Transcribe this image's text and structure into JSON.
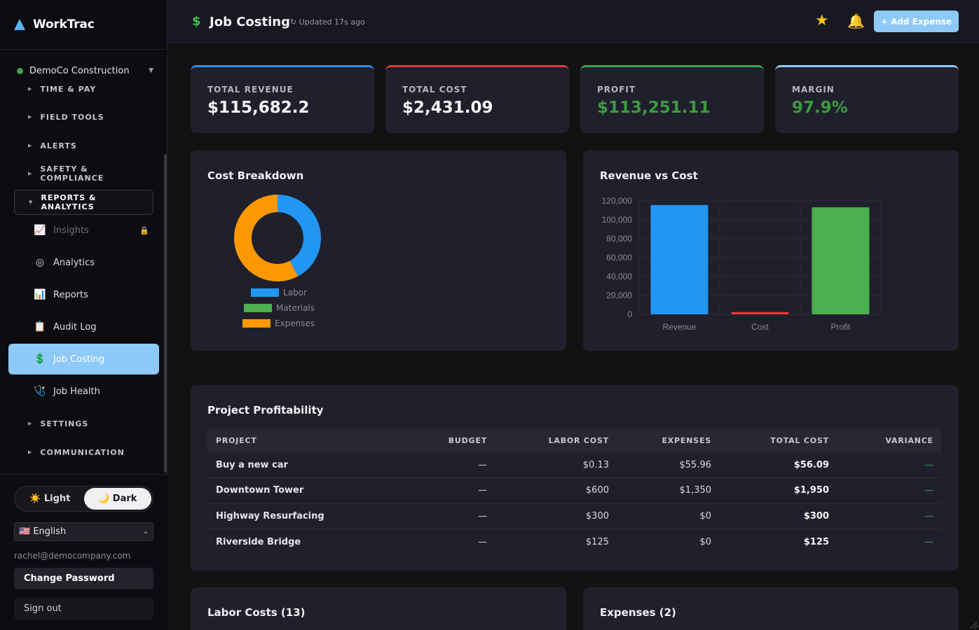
{
  "app": {
    "name": "WorkTrac"
  },
  "sidebar": {
    "org": "DemoCo Construction",
    "sections": [
      {
        "label": "TIME & PAY"
      },
      {
        "label": "FIELD TOOLS"
      },
      {
        "label": "ALERTS"
      },
      {
        "label": "SAFETY & COMPLIANCE"
      },
      {
        "label": "REPORTS & ANALYTICS"
      },
      {
        "label": "SETTINGS"
      },
      {
        "label": "COMMUNICATION"
      }
    ],
    "items": [
      {
        "label": "Insights",
        "icon": "📈",
        "locked": true
      },
      {
        "label": "Analytics",
        "icon": "◎"
      },
      {
        "label": "Reports",
        "icon": "📊"
      },
      {
        "label": "Audit Log",
        "icon": "📋"
      },
      {
        "label": "Job Costing",
        "icon": "💲"
      },
      {
        "label": "Job Health",
        "icon": "🩺"
      }
    ],
    "theme": {
      "light": "☀️ Light",
      "dark": "🌙 Dark",
      "selected": "dark"
    },
    "language": "🇺🇸 English",
    "email": "rachel@democompany.com",
    "change_password": "Change Password",
    "sign_out": "Sign out"
  },
  "header": {
    "title": "Job Costing",
    "updated": "↻ Updated 17s ago",
    "add_expense": "+ Add Expense"
  },
  "stats": [
    {
      "label": "TOTAL REVENUE",
      "value": "$115,682.2",
      "color": "#2e8ee8"
    },
    {
      "label": "TOTAL COST",
      "value": "$2,431.09",
      "color": "#e03a3a"
    },
    {
      "label": "PROFIT",
      "value": "$113,251.11",
      "color": "#3fa34d"
    },
    {
      "label": "MARGIN",
      "value": "97.9%",
      "color": "#8ec9f7"
    }
  ],
  "cost_breakdown": {
    "title": "Cost Breakdown"
  },
  "revenue_vs_cost": {
    "title": "Revenue vs Cost"
  },
  "chart_data": [
    {
      "type": "pie",
      "title": "Cost Breakdown",
      "categories": [
        "Labor",
        "Materials",
        "Expenses"
      ],
      "values": [
        1025.13,
        0,
        1405.96
      ],
      "colors": [
        "#2196f3",
        "#4caf50",
        "#ff9800"
      ],
      "legend": "bottom"
    },
    {
      "type": "bar",
      "title": "Revenue vs Cost",
      "categories": [
        "Revenue",
        "Cost",
        "Profit"
      ],
      "values": [
        115682.2,
        2431.09,
        113251.11
      ],
      "colors": [
        "#2196f3",
        "#e53935",
        "#4caf50"
      ],
      "ylim": [
        0,
        120000
      ],
      "yticks": [
        "0",
        "20,000",
        "40,000",
        "60,000",
        "80,000",
        "100,000",
        "120,000"
      ],
      "grid": true
    }
  ],
  "profitability": {
    "title": "Project Profitability",
    "headers": [
      "PROJECT",
      "BUDGET",
      "LABOR COST",
      "EXPENSES",
      "TOTAL COST",
      "VARIANCE"
    ],
    "rows": [
      [
        "Buy a new car",
        "—",
        "$0.13",
        "$55.96",
        "$56.09",
        "—"
      ],
      [
        "Downtown Tower",
        "—",
        "$600",
        "$1,350",
        "$1,950",
        "—"
      ],
      [
        "Highway Resurfacing",
        "—",
        "$300",
        "$0",
        "$300",
        "—"
      ],
      [
        "Riverside Bridge",
        "—",
        "$125",
        "$0",
        "$125",
        "—"
      ]
    ]
  },
  "labor_costs": {
    "title": "Labor Costs (13)"
  },
  "expenses": {
    "title": "Expenses (2)"
  }
}
